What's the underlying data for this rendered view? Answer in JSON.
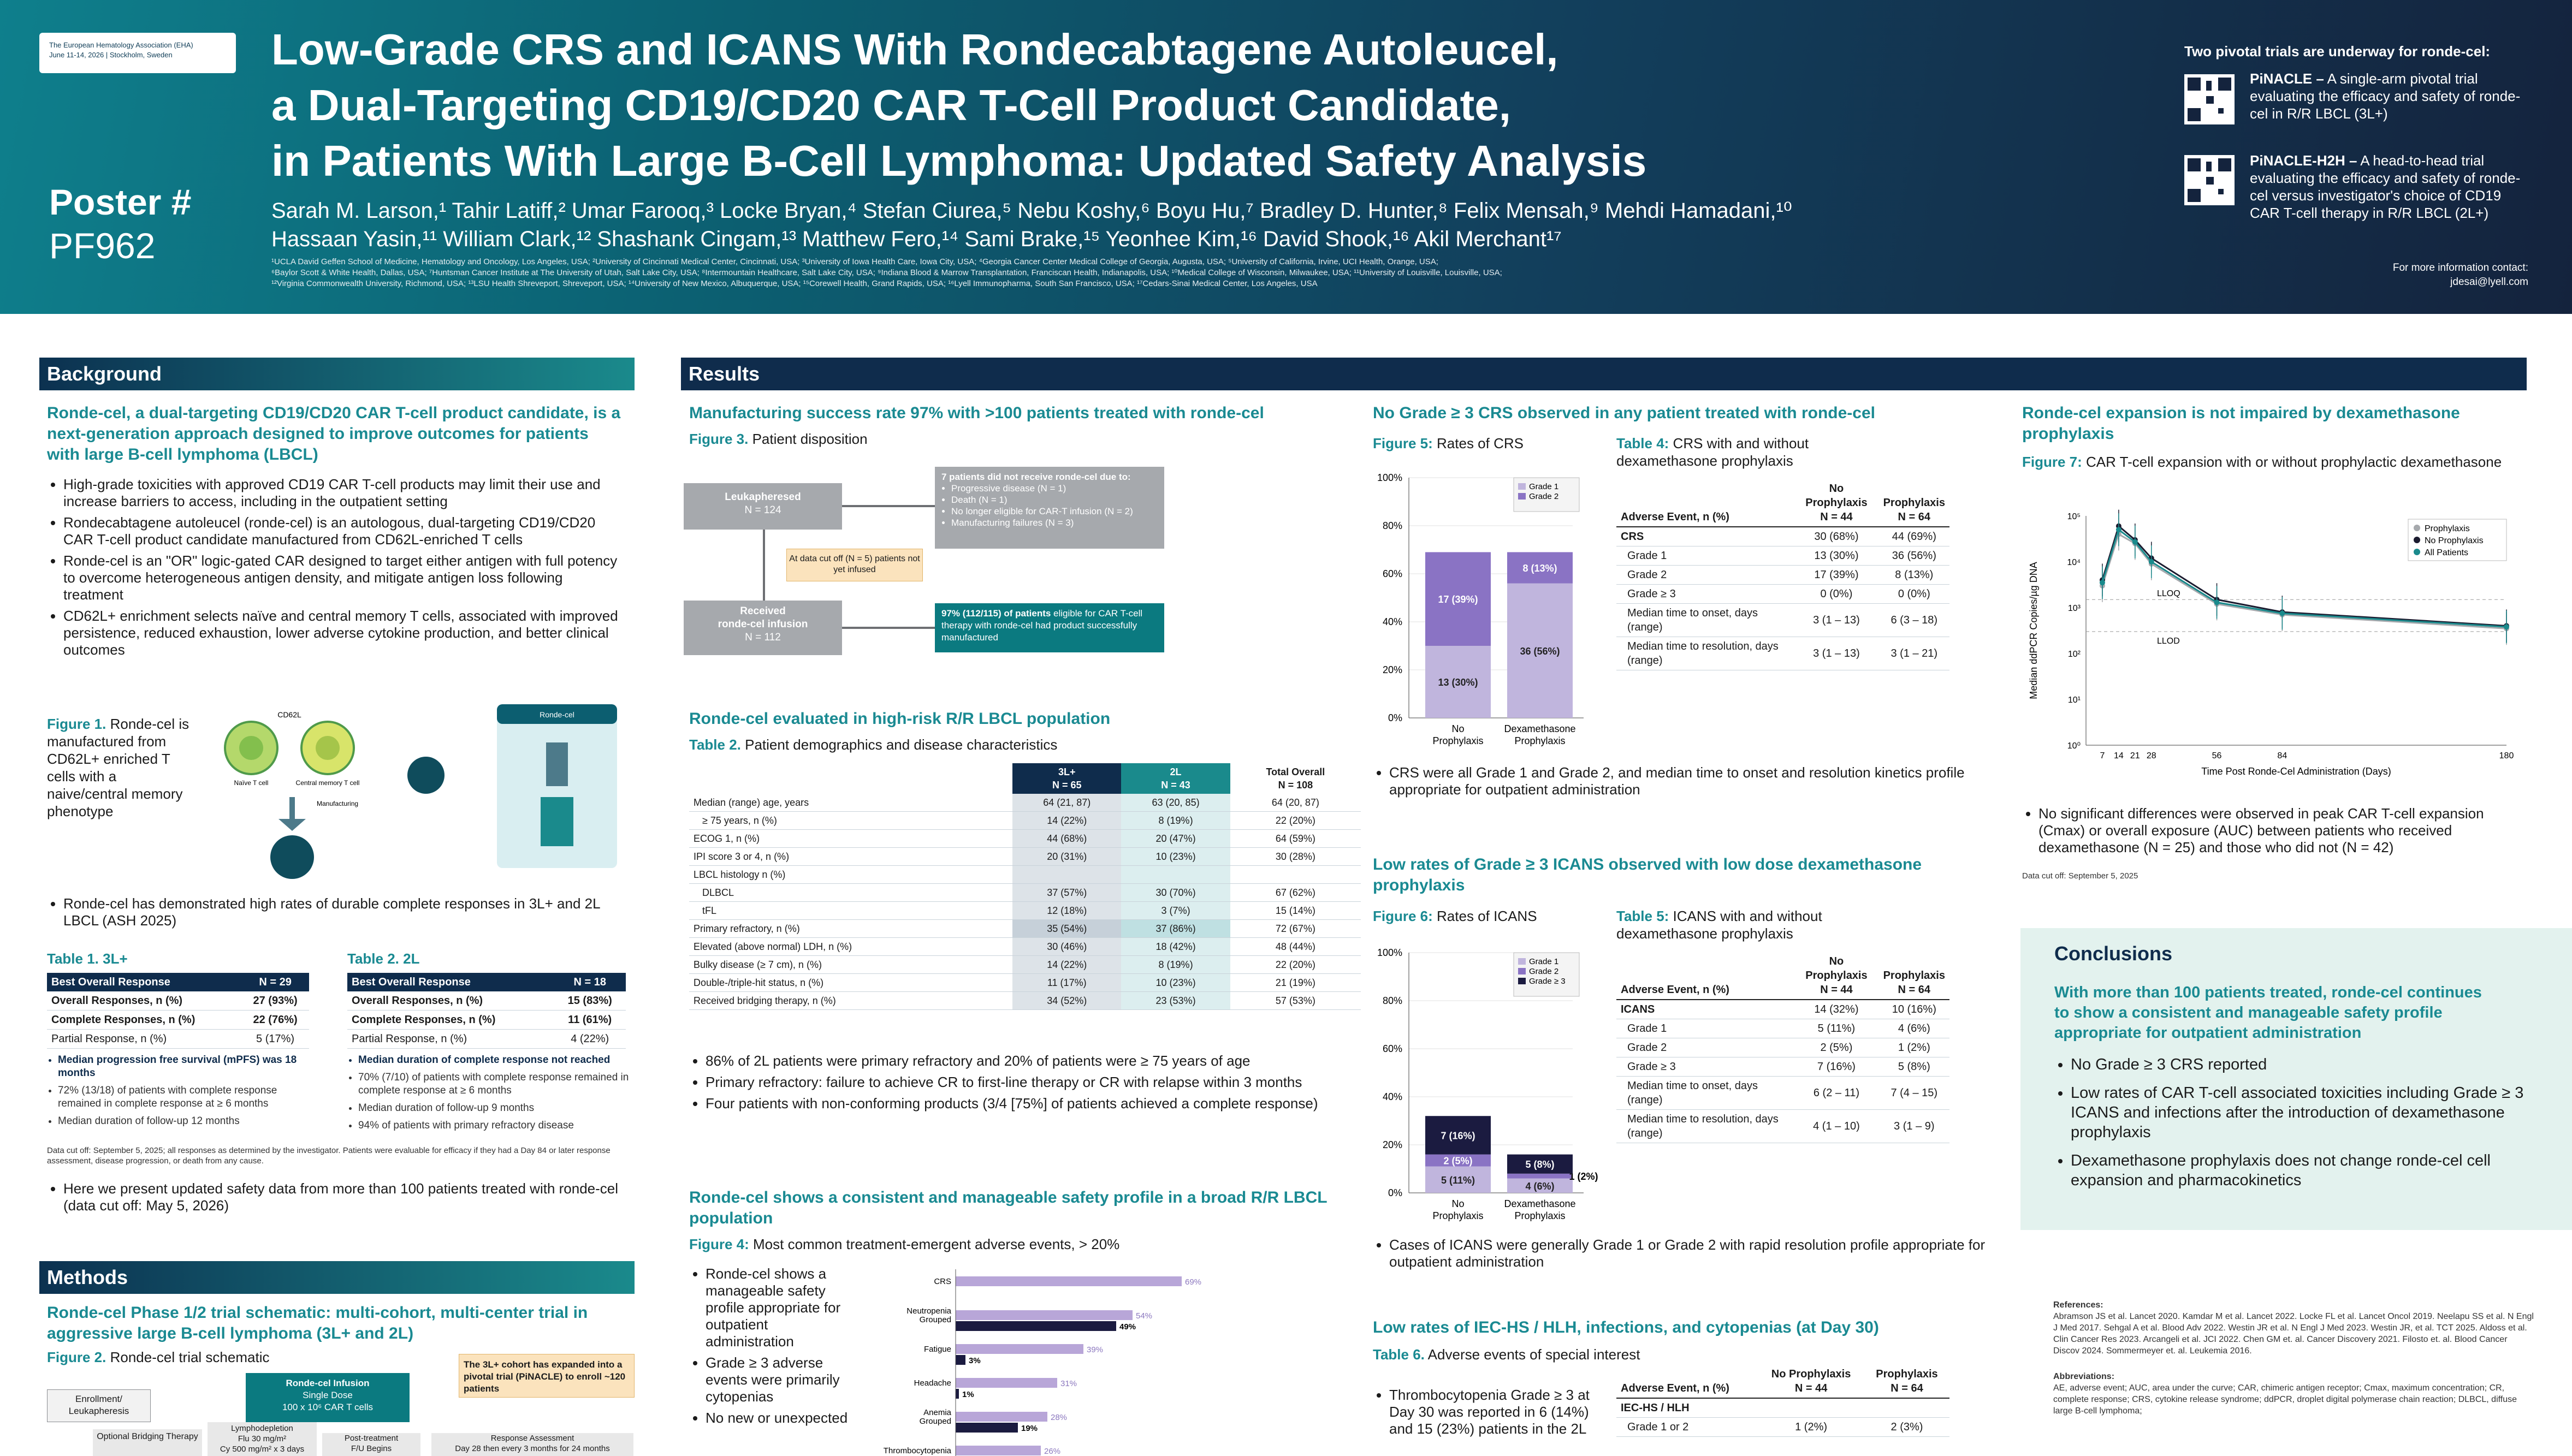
{
  "header": {
    "eha_line1": "The European Hematology Association (EHA)",
    "eha_line2": "June 11-14, 2026  |  Stockholm, Sweden",
    "poster_label": "Poster #",
    "poster_id": "PF962",
    "title_line1": "Low-Grade CRS and ICANS With Rondecabtagene Autoleucel,",
    "title_line2": "a Dual-Targeting CD19/CD20 CAR T-Cell Product Candidate,",
    "title_line3": "in Patients With Large B-Cell Lymphoma: Updated Safety Analysis",
    "authors_line1": "Sarah M. Larson,¹ Tahir Latiff,² Umar Farooq,³ Locke Bryan,⁴ Stefan Ciurea,⁵ Nebu Koshy,⁶ Boyu Hu,⁷ Bradley D. Hunter,⁸ Felix Mensah,⁹ Mehdi Hamadani,¹⁰",
    "authors_line2": "Hassaan Yasin,¹¹ William Clark,¹² Shashank Cingam,¹³ Matthew Fero,¹⁴ Sami Brake,¹⁵ Yeonhee Kim,¹⁶ David Shook,¹⁶ Akil Merchant¹⁷",
    "affil_line1": "¹UCLA David Geffen School of Medicine, Hematology and Oncology, Los Angeles, USA; ²University of Cincinnati Medical Center, Cincinnati, USA; ³University of Iowa Health Care, Iowa City, USA; ⁴Georgia Cancer Center Medical College of Georgia, Augusta, USA; ⁵University of California, Irvine, UCI Health, Orange, USA;",
    "affil_line2": "⁶Baylor Scott & White Health, Dallas, USA; ⁷Huntsman Cancer Institute at The University of Utah, Salt Lake City, USA; ⁸Intermountain Healthcare, Salt Lake City, USA; ⁹Indiana Blood & Marrow Transplantation, Franciscan Health, Indianapolis, USA; ¹⁰Medical College of Wisconsin, Milwaukee, USA; ¹¹University of Louisville, Louisville, USA;",
    "affil_line3": "¹²Virginia Commonwealth University, Richmond, USA; ¹³LSU Health Shreveport, Shreveport, USA; ¹⁴University of New Mexico, Albuquerque, USA; ¹⁵Corewell Health, Grand Rapids, USA; ¹⁶Lyell Immunopharma, South San Francisco, USA; ¹⁷Cedars-Sinai Medical Center, Los Angeles, USA",
    "pivotal_heading": "Two pivotal trials are underway for ronde-cel:",
    "trial1_name": "PiNACLE –",
    "trial1_text": " A single-arm pivotal trial evaluating the efficacy and safety of ronde-cel in R/R LBCL (3L+)",
    "trial2_name": "PiNACLE-H2H –",
    "trial2_text": " A head-to-head trial evaluating the efficacy and safety of ronde-cel versus investigator's choice of CD19 CAR T-cell therapy in R/R LBCL (2L+)",
    "contact_line1": "For more information contact:",
    "contact_line2": "jdesai@lyell.com"
  },
  "background": {
    "header": "Background",
    "heading": "Ronde-cel, a dual-targeting CD19/CD20 CAR T-cell product candidate, is a next-generation approach designed to improve outcomes for patients with large B-cell lymphoma (LBCL)",
    "bullets": [
      "High-grade toxicities with approved CD19 CAR T-cell products may limit their use and increase barriers to access, including in the outpatient setting",
      "Rondecabtagene autoleucel (ronde-cel) is an autologous, dual-targeting CD19/CD20 CAR T-cell product candidate manufactured from CD62L-enriched T cells",
      "Ronde-cel is an \"OR\" logic-gated CAR designed to target either antigen with full potency to overcome heterogeneous antigen density, and mitigate antigen loss following treatment",
      "CD62L+ enrichment selects naïve and central memory T cells, associated with improved persistence, reduced exhaustion, lower adverse cytokine production, and better clinical outcomes"
    ],
    "fig1_label": "Figure 1.",
    "fig1_text": " Ronde-cel is manufactured from CD62L+ enriched T cells with a naive/central memory phenotype",
    "fig1_cd62l": "CD62L",
    "fig1_naive": "Naïve T cell",
    "fig1_central": "Central memory T cell",
    "fig1_manufacturing": "Manufacturing",
    "fig1_rondecel": "Ronde-cel",
    "bullet_after": "Ronde-cel has demonstrated high rates of durable complete responses in 3L+ and 2L LBCL (ASH 2025)",
    "t1_title": "Table 1.",
    "t1_sub": " 3L+",
    "t1_head": [
      "Best Overall Response",
      "N = 29"
    ],
    "t1_rows": [
      [
        "Overall Responses, n (%)",
        "27 (93%)"
      ],
      [
        "Complete Responses, n (%)",
        "22 (76%)"
      ],
      [
        "Partial Response, n (%)",
        "5 (17%)"
      ]
    ],
    "t1_notes": [
      "Median progression free survival (mPFS) was 18 months",
      "72% (13/18) of patients with complete response remained in complete response at ≥ 6 months",
      "Median duration of follow-up 12 months"
    ],
    "t2_title": "Table 2.",
    "t2_sub": " 2L",
    "t2_head": [
      "Best Overall Response",
      "N = 18"
    ],
    "t2_rows": [
      [
        "Overall Responses, n (%)",
        "15 (83%)"
      ],
      [
        "Complete Responses, n (%)",
        "11 (61%)"
      ],
      [
        "Partial Response, n (%)",
        "4 (22%)"
      ]
    ],
    "t2_notes": [
      "Median duration of complete response not reached",
      "70% (7/10) of patients with complete response remained in complete response at ≥ 6 months",
      "Median duration of follow-up 9 months",
      "94% of patients with primary refractory disease"
    ],
    "cutoff_note": "Data cut off: September 5, 2025; all responses as determined by the investigator. Patients were evaluable for efficacy if they had a Day 84 or later response assessment, disease progression, or death from any cause.",
    "final_bullet": "Here we present updated safety data from more than 100 patients treated with ronde-cel (data cut off: May 5, 2026)"
  },
  "methods": {
    "header": "Methods",
    "heading": "Ronde-cel Phase 1/2 trial schematic: multi-cohort, multi-center trial in aggressive large B-cell lymphoma (3L+ and 2L)",
    "fig2_label": "Figure 2.",
    "fig2_text": " Ronde-cel trial schematic",
    "enroll": "Enrollment/ Leukapheresis",
    "infusion_line1": "Ronde-cel Infusion",
    "infusion_line2": "Single Dose",
    "infusion_line3": "100 x 10⁶ CAR T cells",
    "cohort_note": "The 3L+ cohort has expanded into a pivotal trial (PiNACLE) to enroll ~120 patients",
    "bridging": "Optional Bridging Therapy",
    "lympho_line1": "Lymphodepletion",
    "lympho_line2": "Flu 30 mg/m²",
    "lympho_line3": "Cy 500 mg/m² x 3 days",
    "posttx_line1": "Post-treatment",
    "posttx_line2": "F/U Begins",
    "response_line1": "Response Assessment",
    "response_line2": "Day 28 then every 3 months for 24 months"
  },
  "results": {
    "header": "Results",
    "mfg_heading": "Manufacturing success rate 97% with >100 patients treated with ronde-cel",
    "fig3_label": "Figure 3.",
    "fig3_text": " Patient disposition",
    "leuk_line1": "Leukapheresed",
    "leuk_line2": "N = 124",
    "notreceive_title": "7 patients did not receive ronde-cel due to:",
    "notreceive_items": [
      "Progressive disease (N = 1)",
      "Death (N = 1)",
      "No longer eligible for CAR-T infusion (N = 2)",
      "Manufacturing failures (N = 3)"
    ],
    "cutoff_box": "At data cut off (N = 5) patients not yet infused",
    "received_line1": "Received",
    "received_line2": "ronde-cel infusion",
    "received_line3": "N = 112",
    "eligible_strong": "97% (112/115) of patients",
    "eligible_text": " eligible for CAR T-cell therapy with ronde-cel had product successfully manufactured",
    "highrisk_heading": "Ronde-cel evaluated in high-risk R/R LBCL population",
    "t2_label": "Table 2.",
    "t2_text": " Patient demographics and disease characteristics",
    "demo_head": [
      "",
      "3L+\nN = 65",
      "2L\nN = 43",
      "Total Overall\nN = 108"
    ],
    "demo_rows": [
      [
        "Median (range) age, years",
        "64 (21, 87)",
        "63 (20, 85)",
        "64 (20, 87)"
      ],
      [
        "≥ 75 years, n (%)",
        "14 (22%)",
        "8 (19%)",
        "22 (20%)"
      ],
      [
        "ECOG 1, n (%)",
        "44 (68%)",
        "20 (47%)",
        "64 (59%)"
      ],
      [
        "IPI score 3 or 4, n (%)",
        "20 (31%)",
        "10 (23%)",
        "30 (28%)"
      ],
      [
        "LBCL histology n (%)",
        "",
        "",
        ""
      ],
      [
        "DLBCL",
        "37 (57%)",
        "30 (70%)",
        "67 (62%)"
      ],
      [
        "tFL",
        "12 (18%)",
        "3 (7%)",
        "15 (14%)"
      ],
      [
        "Primary refractory, n (%)",
        "35 (54%)",
        "37 (86%)",
        "72 (67%)"
      ],
      [
        "Elevated (above normal) LDH, n (%)",
        "30 (46%)",
        "18 (42%)",
        "48 (44%)"
      ],
      [
        "Bulky disease (≥ 7 cm), n (%)",
        "14 (22%)",
        "8 (19%)",
        "22 (20%)"
      ],
      [
        "Double-/triple-hit status, n (%)",
        "11 (17%)",
        "10 (23%)",
        "21 (19%)"
      ],
      [
        "Received bridging therapy, n (%)",
        "34 (52%)",
        "23 (53%)",
        "57 (53%)"
      ]
    ],
    "demo_bullets": [
      "86% of 2L patients were primary refractory and 20% of patients were ≥ 75 years of age",
      "Primary refractory: failure to achieve CR to first-line therapy or CR with relapse within 3 months",
      "Four patients with non-conforming products (3/4 [75%] of patients achieved a complete response)"
    ],
    "safety_heading": "Ronde-cel shows a consistent and manageable safety profile in a broad R/R LBCL population",
    "fig4_label": "Figure 4:",
    "fig4_text": " Most common treatment-emergent adverse events, > 20%",
    "safety_bullets": [
      "Ronde-cel shows a manageable safety profile appropriate for outpatient administration",
      "Grade ≥ 3 adverse events were primarily cytopenias",
      "No new or unexpected"
    ],
    "crs_heading": "No Grade ≥ 3 CRS observed in any patient treated with ronde-cel",
    "fig5_label": "Figure 5:",
    "fig5_text": " Rates of CRS",
    "t4_label": "Table 4:",
    "t4_text": " CRS with and without dexamethasone prophylaxis",
    "t4_head": [
      "Adverse Event, n (%)",
      "No Prophylaxis\nN = 44",
      "Prophylaxis\nN = 64"
    ],
    "t4_rows": [
      [
        "CRS",
        "30 (68%)",
        "44 (69%)"
      ],
      [
        "Grade 1",
        "13 (30%)",
        "36 (56%)"
      ],
      [
        "Grade 2",
        "17 (39%)",
        "8 (13%)"
      ],
      [
        "Grade ≥ 3",
        "0 (0%)",
        "0 (0%)"
      ],
      [
        "Median time to onset, days (range)",
        "3 (1 – 13)",
        "6 (3 – 18)"
      ],
      [
        "Median time to resolution, days (range)",
        "3 (1 – 13)",
        "3 (1 – 21)"
      ]
    ],
    "crs_bullet": "CRS were all Grade 1 and Grade 2, and median time to onset and resolution kinetics profile appropriate for outpatient administration",
    "icans_heading": "Low rates of Grade ≥ 3 ICANS observed with low dose dexamethasone prophylaxis",
    "fig6_label": "Figure 6:",
    "fig6_text": " Rates of ICANS",
    "t5_label": "Table 5:",
    "t5_text": " ICANS with and without dexamethasone prophylaxis",
    "t5_head": [
      "Adverse Event, n (%)",
      "No Prophylaxis\nN = 44",
      "Prophylaxis\nN = 64"
    ],
    "t5_rows": [
      [
        "ICANS",
        "14 (32%)",
        "10 (16%)"
      ],
      [
        "Grade 1",
        "5 (11%)",
        "4 (6%)"
      ],
      [
        "Grade 2",
        "2 (5%)",
        "1 (2%)"
      ],
      [
        "Grade ≥ 3",
        "7 (16%)",
        "5 (8%)"
      ],
      [
        "Median time to onset, days (range)",
        "6 (2 – 11)",
        "7 (4 – 15)"
      ],
      [
        "Median time to resolution, days (range)",
        "4 (1 – 10)",
        "3 (1 – 9)"
      ]
    ],
    "icans_bullet": "Cases of ICANS were generally Grade 1 or Grade 2 with rapid resolution profile appropriate for outpatient administration",
    "iec_heading": "Low rates of  IEC-HS / HLH, infections, and cytopenias (at Day 30)",
    "t6_label": "Table 6.",
    "t6_text": " Adverse events of special interest",
    "t6_head": [
      "Adverse Event, n (%)",
      "No Prophylaxis\nN = 44",
      "Prophylaxis\nN = 64"
    ],
    "t6_rows": [
      [
        "IEC-HS / HLH",
        "",
        ""
      ],
      [
        "Grade 1 or 2",
        "1 (2%)",
        "2 (3%)"
      ]
    ],
    "iec_bullet": "Thrombocytopenia Grade ≥ 3 at Day 30 was reported in 6 (14%) and 15 (23%) patients in the 2L",
    "expansion_heading": "Ronde-cel expansion is not impaired by dexamethasone prophylaxis",
    "fig7_label": "Figure 7:",
    "fig7_text": " CAR T-cell expansion with or without prophylactic dexamethasone",
    "expansion_bullet": "No significant differences were observed in peak CAR T-cell expansion (Cmax) or overall exposure (AUC) between patients who received dexamethasone (N = 25) and those who did not (N = 42)",
    "expansion_cutoff": "Data cut off: September 5, 2025"
  },
  "conclusions": {
    "header": "Conclusions",
    "lead": "With more than 100 patients treated, ronde-cel continues to show a consistent and manageable safety profile appropriate for outpatient administration",
    "bullets": [
      "No Grade ≥ 3 CRS reported",
      "Low rates of CAR T-cell associated toxicities including Grade ≥ 3 ICANS and infections after the introduction of dexamethasone prophylaxis",
      "Dexamethasone prophylaxis does not change ronde-cel cell expansion and pharmacokinetics"
    ]
  },
  "references": {
    "header": "References:",
    "text": "Abramson JS et al. Lancet 2020. Kamdar M et al. Lancet 2022. Locke FL et al. Lancet Oncol 2019. Neelapu SS et al. N Engl J Med 2017. Sehgal A et al. Blood Adv 2022. Westin JR et al. N Engl J Med 2023. Westin JR, et al. TCT 2025. Aldoss et al. Clin Cancer Res 2023. Arcangeli et al. JCI 2022. Chen GM et. al. Cancer Discovery 2021. Filosto et. al. Blood Cancer Discov 2024. Sommermeyer et. al. Leukemia 2016.",
    "abbr_header": "Abbreviations:",
    "abbr_text": "AE, adverse event; AUC, area under the curve; CAR, chimeric antigen receptor; Cmax, maximum concentration; CR, complete response; CRS, cytokine release syndrome; ddPCR, droplet digital polymerase chain reaction; DLBCL, diffuse large B-cell lymphoma;"
  },
  "chart_data": [
    {
      "type": "bar",
      "categories": [
        "CRS",
        "Neutropenia Grouped",
        "Fatigue",
        "Headache",
        "Anemia Grouped",
        "Thrombocytopenia"
      ],
      "series": [
        {
          "name": "Any grade",
          "values": [
            69,
            54,
            39,
            31,
            28,
            26
          ]
        },
        {
          "name": "Grade ≥ 3",
          "values": [
            null,
            49,
            3,
            1,
            19,
            null
          ]
        }
      ],
      "data_labels": [
        "69%",
        "54%",
        "49%",
        "39%",
        "3%",
        "31%",
        "1%",
        "28%",
        "19%",
        "26%"
      ]
    },
    {
      "type": "bar",
      "stacked": true,
      "categories": [
        "No Prophylaxis",
        "Dexamethasone Prophylaxis"
      ],
      "series": [
        {
          "name": "Grade 1",
          "values": [
            30,
            56
          ]
        },
        {
          "name": "Grade 2",
          "values": [
            39,
            13
          ]
        }
      ],
      "ylim": [
        0,
        100
      ],
      "yticks": [
        "0%",
        "20%",
        "40%",
        "60%",
        "80%",
        "100%"
      ],
      "labels": [
        [
          "13 (30%)",
          "17 (39%)"
        ],
        [
          "36 (56%)",
          "8 (13%)"
        ]
      ]
    },
    {
      "type": "bar",
      "stacked": true,
      "categories": [
        "No Prophylaxis",
        "Dexamethasone Prophylaxis"
      ],
      "series": [
        {
          "name": "Grade 1",
          "values": [
            11,
            6
          ]
        },
        {
          "name": "Grade 2",
          "values": [
            5,
            2
          ]
        },
        {
          "name": "Grade ≥ 3",
          "values": [
            16,
            8
          ]
        }
      ],
      "ylim": [
        0,
        100
      ],
      "yticks": [
        "0%",
        "20%",
        "40%",
        "60%",
        "80%",
        "100%"
      ],
      "labels": [
        [
          "5 (11%)",
          "2 (5%)",
          "7 (16%)"
        ],
        [
          "4 (6%)",
          "1 (2%)",
          "5 (8%)"
        ]
      ]
    },
    {
      "type": "line",
      "xlabel": "Time Post Ronde-Cel Administration (Days)",
      "ylabel": "Median ddPCR Copies/µg DNA",
      "x": [
        7,
        14,
        21,
        28,
        56,
        84,
        180
      ],
      "xticks": [
        "7",
        "14",
        "21",
        "28",
        "56",
        "84",
        "180"
      ],
      "yticks": [
        "10⁰",
        "10¹",
        "10²",
        "10³",
        "10⁴",
        "10⁵"
      ],
      "log_y": true,
      "series": [
        {
          "name": "Prophylaxis",
          "color": "#a6a9ad",
          "values": [
            3000,
            40000,
            25000,
            9000,
            1200,
            700,
            350
          ]
        },
        {
          "name": "No Prophylaxis",
          "color": "#1b1b2f",
          "values": [
            4000,
            60000,
            30000,
            12000,
            1500,
            800,
            400
          ]
        },
        {
          "name": "All Patients",
          "color": "#1a8a8c",
          "values": [
            3500,
            50000,
            27000,
            10000,
            1300,
            750,
            380
          ]
        }
      ],
      "annotations": [
        "LLOQ",
        "LLOD"
      ]
    }
  ]
}
